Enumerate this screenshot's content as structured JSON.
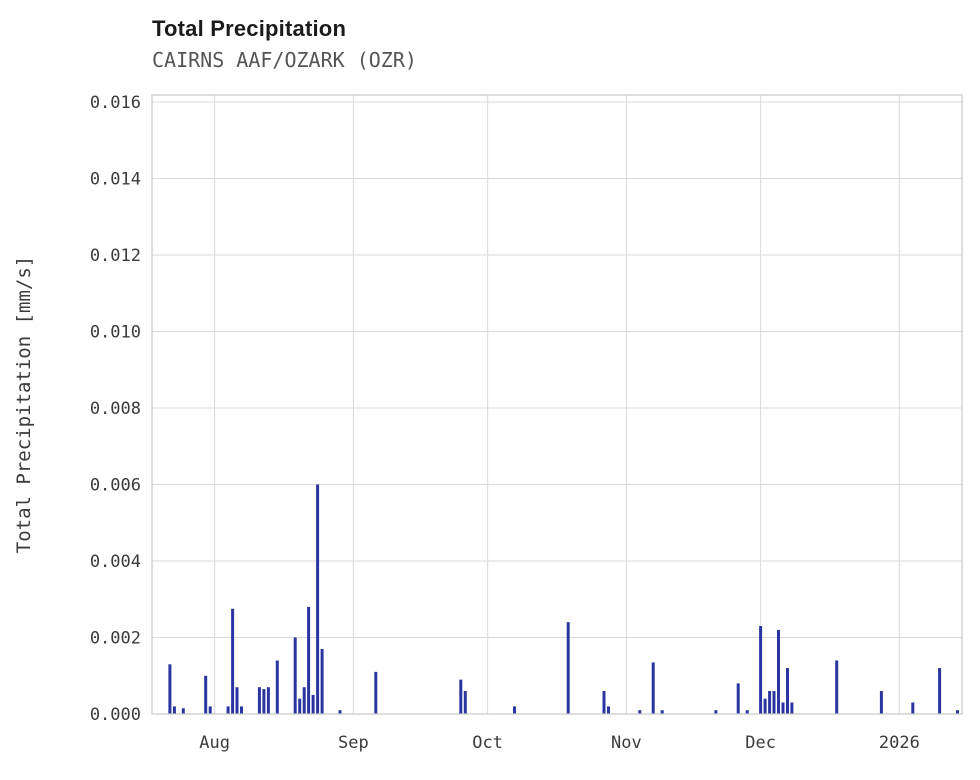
{
  "chart_data": {
    "type": "bar",
    "title": "Total Precipitation",
    "subtitle": "CAIRNS AAF/OZARK (OZR)",
    "ylabel": "Total Precipitation [mm/s]",
    "xlabel": "",
    "ylim": [
      0,
      0.016
    ],
    "yticks": [
      0.0,
      0.002,
      0.004,
      0.006,
      0.008,
      0.01,
      0.012,
      0.014,
      0.016
    ],
    "x_range": [
      "2025-07-18",
      "2026-01-15"
    ],
    "x_ticks": [
      {
        "date": "2025-08-01",
        "label": "Aug"
      },
      {
        "date": "2025-09-01",
        "label": "Sep"
      },
      {
        "date": "2025-10-01",
        "label": "Oct"
      },
      {
        "date": "2025-11-01",
        "label": "Nov"
      },
      {
        "date": "2025-12-01",
        "label": "Dec"
      },
      {
        "date": "2026-01-01",
        "label": "2026"
      }
    ],
    "grid": true,
    "legend": "none",
    "colors": {
      "bar": "#2b35a0",
      "grid": "#d9d9d9",
      "border": "#c8c8c8",
      "tick_text": "#3b3b3b",
      "title_text": "#1b1b1b",
      "subtitle_text": "#555555"
    },
    "points": [
      {
        "date": "2025-07-22",
        "value": 0.0013
      },
      {
        "date": "2025-07-23",
        "value": 0.0002
      },
      {
        "date": "2025-07-25",
        "value": 0.00015
      },
      {
        "date": "2025-07-30",
        "value": 0.001
      },
      {
        "date": "2025-07-31",
        "value": 0.0002
      },
      {
        "date": "2025-08-04",
        "value": 0.0002
      },
      {
        "date": "2025-08-05",
        "value": 0.00275
      },
      {
        "date": "2025-08-06",
        "value": 0.0007
      },
      {
        "date": "2025-08-07",
        "value": 0.0002
      },
      {
        "date": "2025-08-11",
        "value": 0.0007
      },
      {
        "date": "2025-08-12",
        "value": 0.00065
      },
      {
        "date": "2025-08-13",
        "value": 0.0007
      },
      {
        "date": "2025-08-15",
        "value": 0.0014
      },
      {
        "date": "2025-08-19",
        "value": 0.002
      },
      {
        "date": "2025-08-20",
        "value": 0.0004
      },
      {
        "date": "2025-08-21",
        "value": 0.0007
      },
      {
        "date": "2025-08-22",
        "value": 0.0028
      },
      {
        "date": "2025-08-23",
        "value": 0.0005
      },
      {
        "date": "2025-08-24",
        "value": 0.006
      },
      {
        "date": "2025-08-25",
        "value": 0.0017
      },
      {
        "date": "2025-08-29",
        "value": 0.0001
      },
      {
        "date": "2025-09-06",
        "value": 0.0011
      },
      {
        "date": "2025-09-25",
        "value": 0.0009
      },
      {
        "date": "2025-09-26",
        "value": 0.0006
      },
      {
        "date": "2025-10-07",
        "value": 0.0002
      },
      {
        "date": "2025-10-19",
        "value": 0.0024
      },
      {
        "date": "2025-10-27",
        "value": 0.0006
      },
      {
        "date": "2025-10-28",
        "value": 0.0002
      },
      {
        "date": "2025-11-04",
        "value": 0.0001
      },
      {
        "date": "2025-11-07",
        "value": 0.00135
      },
      {
        "date": "2025-11-09",
        "value": 0.0001
      },
      {
        "date": "2025-11-21",
        "value": 0.0001
      },
      {
        "date": "2025-11-26",
        "value": 0.0008
      },
      {
        "date": "2025-11-28",
        "value": 0.0001
      },
      {
        "date": "2025-12-01",
        "value": 0.0023
      },
      {
        "date": "2025-12-02",
        "value": 0.0004
      },
      {
        "date": "2025-12-03",
        "value": 0.0006
      },
      {
        "date": "2025-12-04",
        "value": 0.0006
      },
      {
        "date": "2025-12-05",
        "value": 0.0022
      },
      {
        "date": "2025-12-06",
        "value": 0.0003
      },
      {
        "date": "2025-12-07",
        "value": 0.0012
      },
      {
        "date": "2025-12-08",
        "value": 0.0003
      },
      {
        "date": "2025-12-18",
        "value": 0.0014
      },
      {
        "date": "2025-12-28",
        "value": 0.0006
      },
      {
        "date": "2026-01-04",
        "value": 0.0003
      },
      {
        "date": "2026-01-10",
        "value": 0.0012
      },
      {
        "date": "2026-01-14",
        "value": 0.0001
      }
    ]
  }
}
